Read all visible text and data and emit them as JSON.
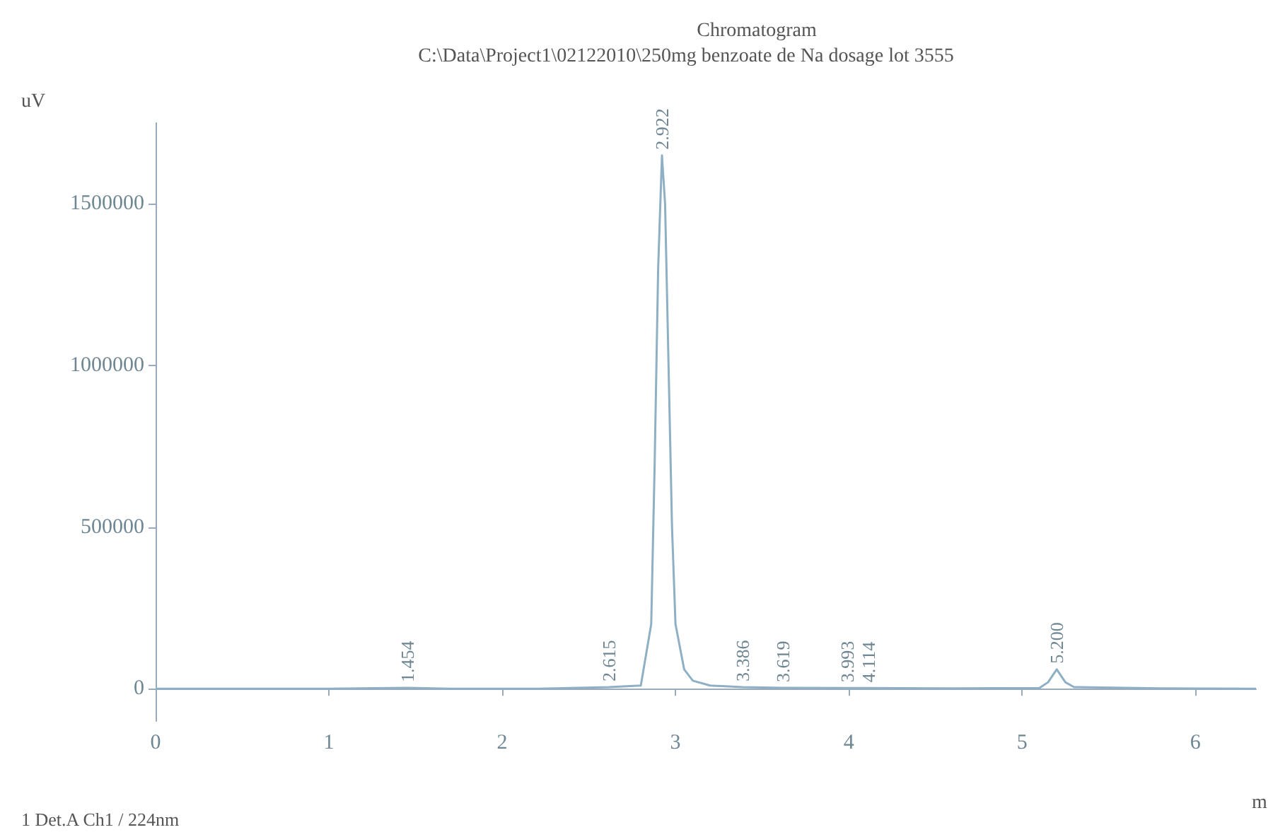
{
  "chart_data": {
    "type": "line",
    "title": "Chromatogram",
    "subtitle": "C:\\Data\\Project1\\02122010\\250mg benzoate de Na dosage lot 3555",
    "xlabel": "m",
    "ylabel": "uV",
    "x": [
      0,
      0.5,
      1.0,
      1.454,
      1.7,
      2.2,
      2.615,
      2.8,
      2.86,
      2.88,
      2.9,
      2.922,
      2.94,
      2.96,
      2.98,
      3.0,
      3.05,
      3.1,
      3.2,
      3.386,
      3.619,
      3.993,
      4.114,
      4.6,
      5.1,
      5.15,
      5.2,
      5.25,
      5.3,
      5.8,
      6.35
    ],
    "series": [
      {
        "color": "#8fb0c4",
        "values": [
          0,
          0,
          0,
          3000,
          0,
          0,
          5000,
          10000,
          200000,
          700000,
          1300000,
          1650000,
          1500000,
          1000000,
          500000,
          200000,
          60000,
          25000,
          10000,
          5000,
          3000,
          2000,
          2000,
          1000,
          2000,
          20000,
          60000,
          20000,
          5000,
          1000,
          0
        ]
      }
    ],
    "xlim": [
      0,
      6.35
    ],
    "xticks": [
      0,
      1,
      2,
      3,
      4,
      5,
      6
    ],
    "ylim": [
      -100000,
      1750000
    ],
    "yticks": [
      0,
      500000,
      1000000,
      1500000
    ],
    "grid": false,
    "marker": "none",
    "line_style": "solid",
    "annotations": [
      {
        "text": "1.454",
        "x": 1.454,
        "y": 3000
      },
      {
        "text": "2.615",
        "x": 2.615,
        "y": 5000
      },
      {
        "text": "2.922",
        "x": 2.922,
        "y": 1650000
      },
      {
        "text": "3.386",
        "x": 3.386,
        "y": 5000
      },
      {
        "text": "3.619",
        "x": 3.619,
        "y": 3000
      },
      {
        "text": "3.993",
        "x": 3.993,
        "y": 2000
      },
      {
        "text": "4.114",
        "x": 4.114,
        "y": 2000
      },
      {
        "text": "5.200",
        "x": 5.2,
        "y": 60000
      },
      "1 Det.A Ch1 / 224nm"
    ]
  }
}
